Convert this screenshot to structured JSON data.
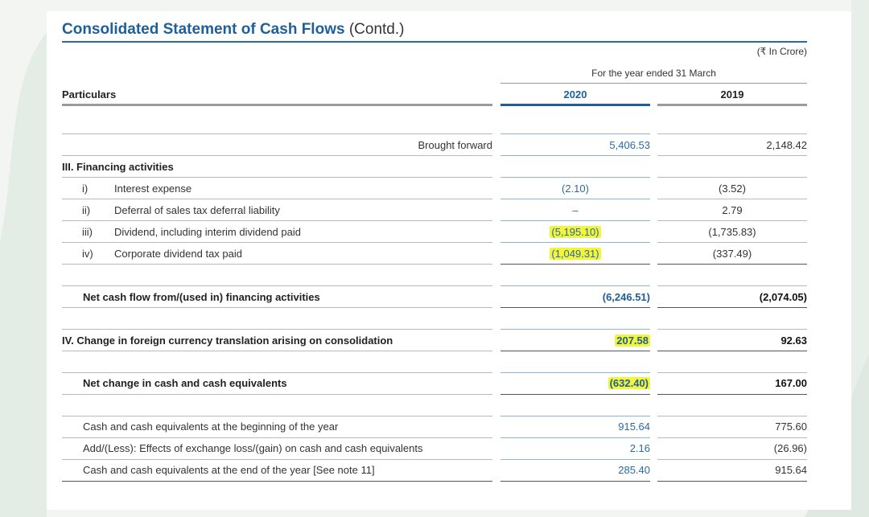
{
  "title": {
    "main": "Consolidated Statement of Cash Flows",
    "contd": "(Contd.)"
  },
  "unit": "(₹ In Crore)",
  "period": "For the year ended 31 March",
  "headers": {
    "particulars": "Particulars",
    "y2020": "2020",
    "y2019": "2019"
  },
  "brought_forward": {
    "label": "Brought forward",
    "v2020": "5,406.53",
    "v2019": "2,148.42"
  },
  "financing": {
    "heading": "III. Financing activities",
    "items": [
      {
        "num": "i)",
        "label": "Interest expense",
        "v2020": "(2.10)",
        "v2019": "(3.52)"
      },
      {
        "num": "ii)",
        "label": "Deferral of sales tax deferral liability",
        "v2020": "–",
        "v2019": "2.79"
      },
      {
        "num": "iii)",
        "label": "Dividend, including interim dividend paid",
        "v2020": "(5,195.10)",
        "v2019": "(1,735.83)"
      },
      {
        "num": "iv)",
        "label": "Corporate dividend tax paid",
        "v2020": "(1,049.31)",
        "v2019": "(337.49)"
      }
    ]
  },
  "net_financing": {
    "label": "Net cash flow from/(used in) financing activities",
    "v2020": "(6,246.51)",
    "v2019": "(2,074.05)"
  },
  "fx_translation": {
    "label": "IV. Change in foreign currency translation arising on consolidation",
    "v2020": "207.58",
    "v2019": "92.63"
  },
  "net_change": {
    "label": "Net change in cash and cash equivalents",
    "v2020": "(632.40)",
    "v2019": "167.00"
  },
  "cash_rows": [
    {
      "label": "Cash and cash equivalents at the beginning of the year",
      "v2020": "915.64",
      "v2019": "775.60"
    },
    {
      "label": "Add/(Less): Effects of exchange loss/(gain) on cash and cash equivalents",
      "v2020": "2.16",
      "v2019": "(26.96)"
    },
    {
      "label": "Cash and cash equivalents at the end of the year [See note 11]",
      "v2020": "285.40",
      "v2019": "915.64"
    }
  ],
  "colors": {
    "accent": "#1f5f99",
    "highlight": "#f3f53a"
  }
}
